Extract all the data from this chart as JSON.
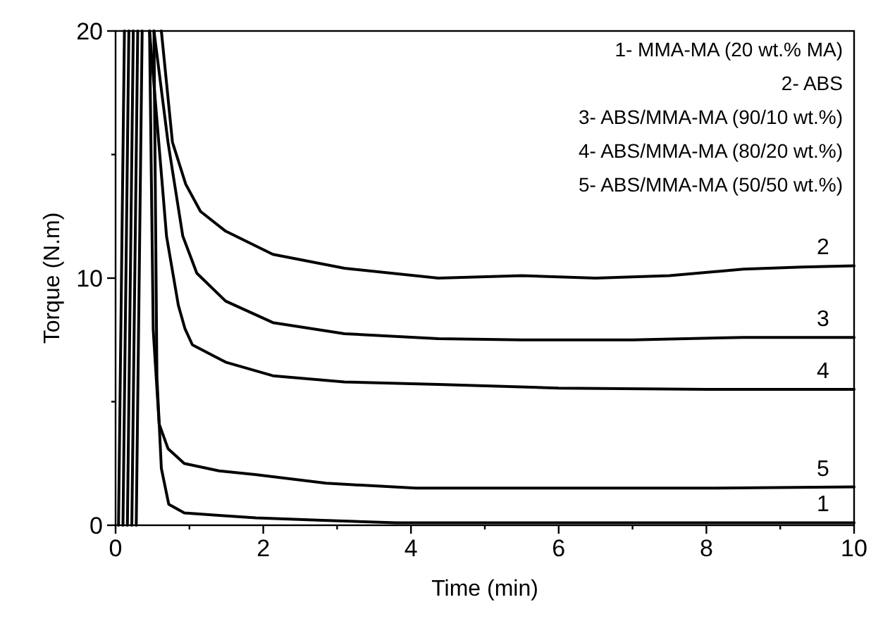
{
  "chart_data": {
    "type": "line",
    "xlabel": "Time (min)",
    "ylabel": "Torque (N.m)",
    "xlim": [
      0,
      10
    ],
    "ylim": [
      0,
      20
    ],
    "xticks": [
      0,
      {
        "value": 1,
        "label": null
      },
      2,
      {
        "value": 3,
        "label": null
      },
      4,
      {
        "value": 5,
        "label": null
      },
      6,
      {
        "value": 7,
        "label": null
      },
      8,
      {
        "value": 9,
        "label": null
      },
      10
    ],
    "yticks": [
      0,
      {
        "value": 5,
        "label": null
      },
      10,
      {
        "value": 15,
        "label": null
      },
      20
    ],
    "marker": "none",
    "line_style": "solid",
    "series": [
      {
        "name": "1",
        "color": "#000000",
        "x": [
          0.04,
          0.12,
          0.3,
          0.52,
          0.56,
          0.62,
          0.72,
          0.93,
          1.4,
          1.9,
          2.8,
          3.8,
          5,
          6,
          7,
          8,
          9,
          10
        ],
        "values": [
          0,
          20,
          null,
          20,
          6,
          2.3,
          0.85,
          0.5,
          0.4,
          0.3,
          0.2,
          0.1,
          0.1,
          0.1,
          0.1,
          0.1,
          0.1,
          0.1
        ]
      },
      {
        "name": "2",
        "color": "#000000",
        "x": [
          0.1,
          0.18,
          0.4,
          0.62,
          0.77,
          0.95,
          1.15,
          1.49,
          2.13,
          3.1,
          4.37,
          5.5,
          6.5,
          7.5,
          8.5,
          9.3,
          10
        ],
        "values": [
          0,
          20,
          null,
          20,
          15.5,
          13.8,
          12.7,
          11.9,
          10.96,
          10.4,
          10.0,
          10.1,
          10.0,
          10.1,
          10.36,
          10.45,
          10.5
        ]
      },
      {
        "name": "3",
        "color": "#000000",
        "x": [
          0.16,
          0.24,
          0.35,
          0.52,
          0.71,
          0.91,
          1.1,
          1.49,
          2.13,
          3.1,
          4.37,
          5.5,
          7,
          8.5,
          10
        ],
        "values": [
          0,
          20,
          null,
          20,
          15.5,
          11.7,
          10.2,
          9.07,
          8.2,
          7.75,
          7.55,
          7.5,
          7.5,
          7.6,
          7.6
        ]
      },
      {
        "name": "4",
        "color": "#000000",
        "x": [
          0.22,
          0.3,
          0.38,
          0.46,
          0.69,
          0.85,
          0.94,
          1.04,
          1.49,
          2.13,
          3.1,
          4.37,
          6,
          8,
          10
        ],
        "values": [
          0,
          20,
          null,
          20,
          11.7,
          8.9,
          7.95,
          7.3,
          6.6,
          6.05,
          5.8,
          5.7,
          5.55,
          5.5,
          5.5
        ]
      },
      {
        "name": "5",
        "color": "#000000",
        "x": [
          0.28,
          0.36,
          0.42,
          0.46,
          0.51,
          0.59,
          0.71,
          0.93,
          1.4,
          1.89,
          2.85,
          4.07,
          6,
          8,
          10
        ],
        "values": [
          0,
          20,
          null,
          20,
          7.9,
          4.1,
          3.1,
          2.5,
          2.2,
          2.05,
          1.7,
          1.5,
          1.5,
          1.5,
          1.55
        ]
      }
    ],
    "annotations": [
      "1- MMA-MA (20 wt.% MA)",
      "2- ABS",
      "3- ABS/MMA-MA (90/10 wt.%)",
      "4- ABS/MMA-MA (80/20 wt.%)",
      "5- ABS/MMA-MA (50/50 wt.%)"
    ]
  }
}
